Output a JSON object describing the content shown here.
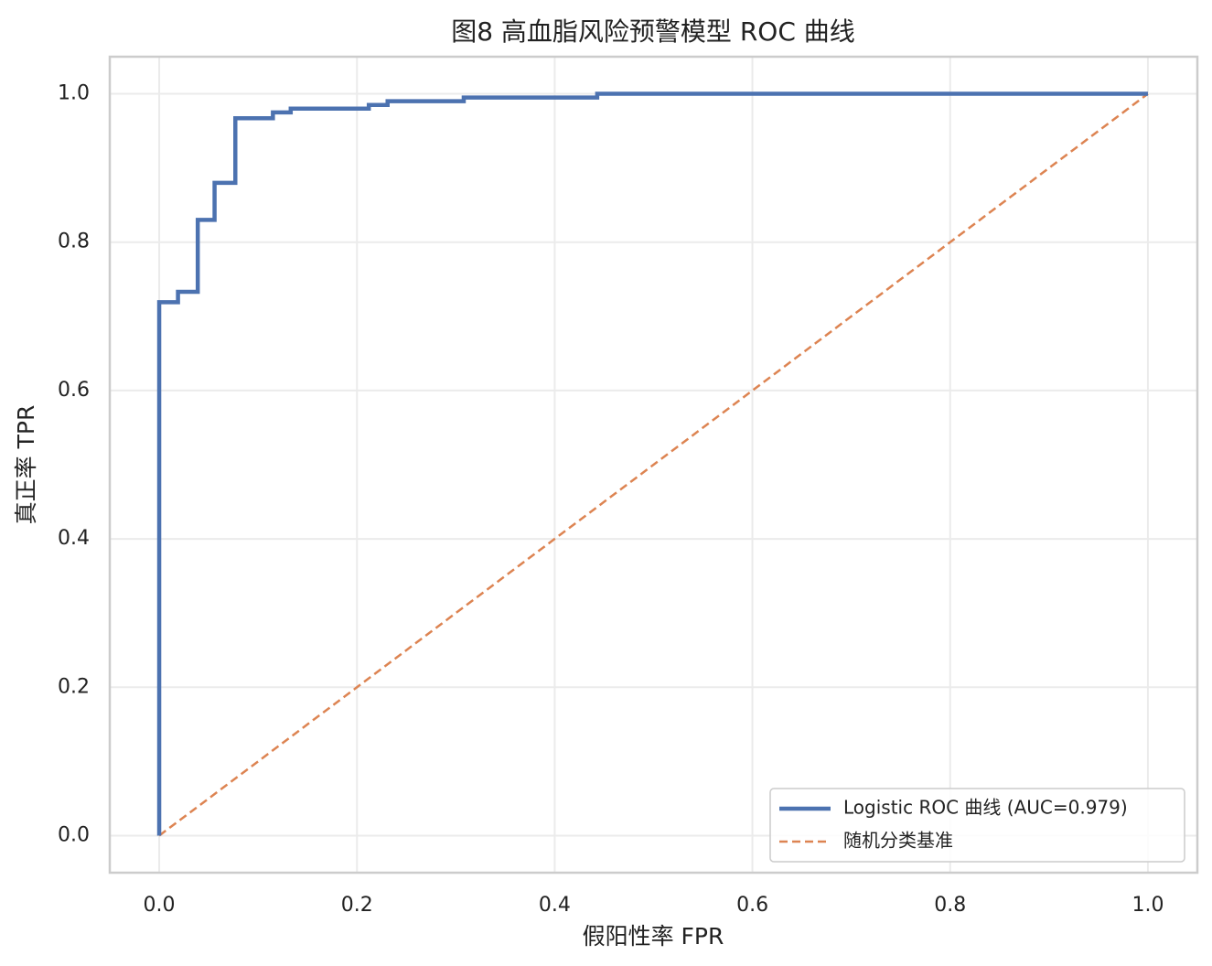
{
  "chart_data": {
    "type": "line",
    "title": "图8 高血脂风险预警模型 ROC 曲线",
    "x_label": "假阳性率 FPR",
    "y_label": "真正率 TPR",
    "series": [
      {
        "name": "Logistic ROC 曲线 (AUC=0.979)",
        "color": "#4c72b0",
        "dash": false,
        "x": [
          0,
          0,
          0.019,
          0.019,
          0.039,
          0.039,
          0.056,
          0.056,
          0.077,
          0.077,
          0.115,
          0.115,
          0.133,
          0.133,
          0.212,
          0.212,
          0.231,
          0.231,
          0.308,
          0.308,
          0.443,
          0.443,
          1
        ],
        "values": [
          0,
          0.719,
          0.719,
          0.733,
          0.733,
          0.83,
          0.83,
          0.88,
          0.88,
          0.967,
          0.967,
          0.975,
          0.975,
          0.98,
          0.98,
          0.985,
          0.985,
          0.99,
          0.99,
          0.995,
          0.995,
          1.0,
          1.0
        ]
      },
      {
        "name": "随机分类基准",
        "color": "#dd8452",
        "dash": true,
        "x": [
          0,
          1
        ],
        "values": [
          0,
          1
        ]
      }
    ],
    "xlim": [
      -0.05,
      1.05
    ],
    "ylim": [
      -0.05,
      1.05
    ],
    "xticks": [
      {
        "value": 0,
        "label": "0.0"
      },
      0.2,
      0.4,
      0.6,
      0.8,
      {
        "value": 1,
        "label": "1.0"
      }
    ],
    "yticks": [
      {
        "value": 0,
        "label": "0.0"
      },
      0.2,
      0.4,
      0.6,
      0.8,
      {
        "value": 1,
        "label": "1.0"
      }
    ],
    "grid": true,
    "legend": "lower-right"
  }
}
